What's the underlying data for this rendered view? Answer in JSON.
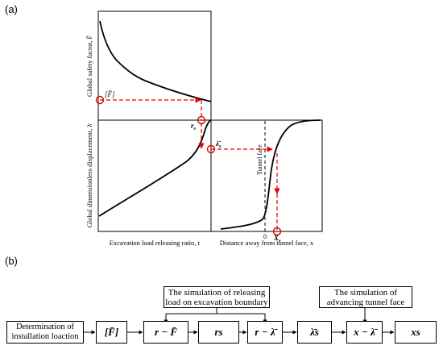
{
  "panel_a_label": "(a)",
  "panel_b_label": "(b)",
  "top_plot": {
    "ylabel": "Global safety factor, F̄",
    "marker_label": "[F̄]",
    "rs_label": "r",
    "rs_sub": "s"
  },
  "bottom_left_plot": {
    "ylabel": "Global dimensionless displacement, λ̄",
    "xlabel": "Excavation load releasing ratio, r"
  },
  "bottom_right_plot": {
    "xlabel": "Distance away from tunnel face, x",
    "tunnel_face_label": "Tunnel face",
    "zero_tick": "0",
    "lambda_s_label": "λ̄",
    "lambda_s_sub": "s",
    "xs_label": "X",
    "xs_sub": "s"
  },
  "flowchart": {
    "sim_release_line1": "The simulation of releasing",
    "sim_release_line2": "load on excavation boundary",
    "sim_advance_line1": "The simulation of",
    "sim_advance_line2": "advancing tunnel face",
    "det_line1": "Determination of",
    "det_line2": "installation loaction",
    "box_F": "[F̄]",
    "box_r_minus_F": "r − F̄",
    "box_rs": "rs",
    "box_r_minus_lambda": "r − λ̄",
    "box_lambda_s": "λ̄s",
    "box_x_minus_lambda": "x − λ̄",
    "box_xs": "xs"
  },
  "colors": {
    "curve": "#000000",
    "annotation": "#e00000"
  }
}
